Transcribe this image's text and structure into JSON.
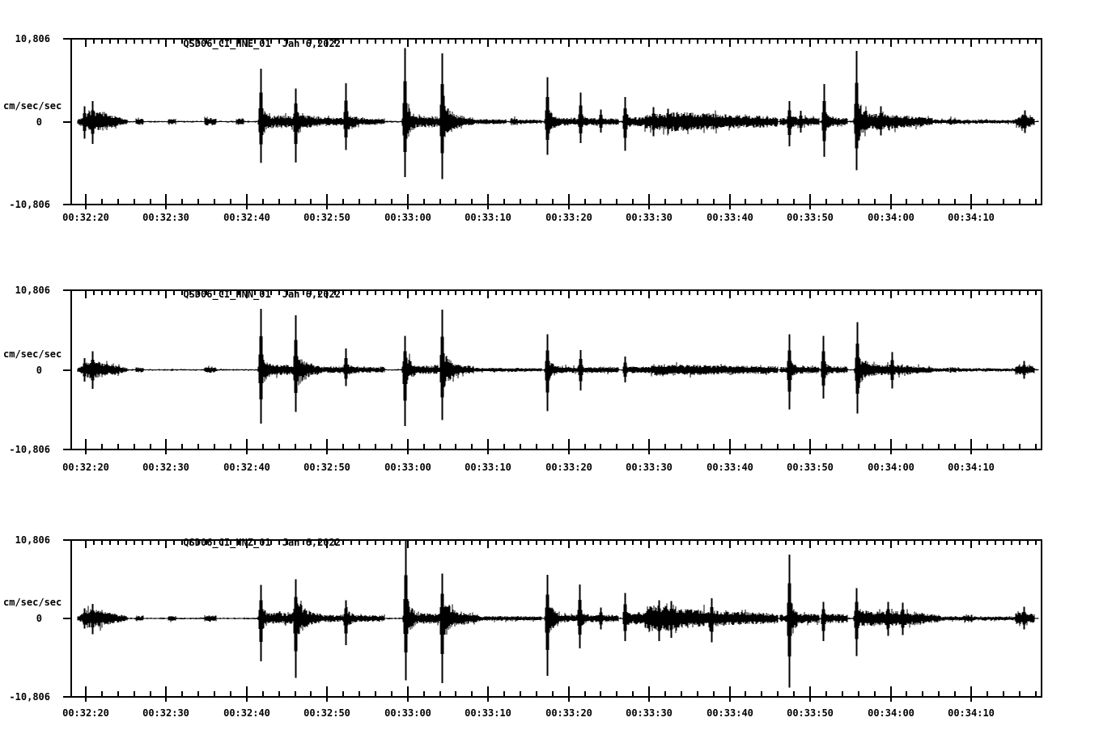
{
  "page": {
    "background": "#ffffff",
    "ink": "#000000"
  },
  "chart_data": [
    {
      "type": "line",
      "kind": "seismogram-waveform",
      "station_channel": "QSD06_CI_HNE_01",
      "date": "Jan 6,2022",
      "title": "QSD06_CI_HNE_01  Jan 6,2022",
      "ylabel": "cm/sec/sec",
      "yticks": [
        "10,806",
        "0",
        "-10,806"
      ],
      "ylim": [
        -10.806,
        10.806
      ],
      "xticks": [
        "00:32:20",
        "00:32:30",
        "00:32:40",
        "00:32:50",
        "00:33:00",
        "00:33:10",
        "00:33:20",
        "00:33:30",
        "00:33:40",
        "00:33:50",
        "00:34:00",
        "00:34:10"
      ],
      "x_tick_interval_seconds": 10,
      "series_notes": "spikes=[t_sec_from_left_edge, peak_up, peak_down, coda_sec]; noise=[t0, t1, amp_start, amp_end] envelope in cm/sec/sec",
      "seed": 101,
      "spikes": [
        [
          1.6,
          2.0,
          2.2,
          0.4
        ],
        [
          2.6,
          2.7,
          2.9,
          0.6
        ],
        [
          23.5,
          6.9,
          5.4,
          1.1
        ],
        [
          27.9,
          4.3,
          5.3,
          1.9
        ],
        [
          34.1,
          5.0,
          3.7,
          1.4
        ],
        [
          41.4,
          9.6,
          7.2,
          1.0
        ],
        [
          46.1,
          8.9,
          7.5,
          1.5
        ],
        [
          59.1,
          5.8,
          4.3,
          1.2
        ],
        [
          63.2,
          3.8,
          2.8,
          1.0
        ],
        [
          65.8,
          1.6,
          1.4,
          0.7
        ],
        [
          68.8,
          3.2,
          3.8,
          1.2
        ],
        [
          72.3,
          1.9,
          1.9,
          0.6
        ],
        [
          74.1,
          1.7,
          1.6,
          0.5
        ],
        [
          89.2,
          2.7,
          3.2,
          1.4
        ],
        [
          90.6,
          1.4,
          1.4,
          0.5
        ],
        [
          93.5,
          4.9,
          4.6,
          0.9
        ],
        [
          97.5,
          9.2,
          6.3,
          1.7
        ],
        [
          100.6,
          2.0,
          1.8,
          1.2
        ],
        [
          118.5,
          1.5,
          1.5,
          0.4
        ]
      ],
      "noise": [
        [
          0.8,
          2.2,
          0.3,
          1.5
        ],
        [
          2.2,
          4.5,
          1.5,
          1.2
        ],
        [
          4.5,
          7,
          1.0,
          0.3
        ],
        [
          8,
          9,
          0.45,
          0.45
        ],
        [
          12,
          13,
          0.4,
          0.4
        ],
        [
          16.5,
          18,
          0.5,
          0.5
        ],
        [
          20.5,
          21.5,
          0.5,
          0.5
        ],
        [
          24.2,
          27.6,
          0.85,
          0.8
        ],
        [
          28.3,
          31,
          1.0,
          0.6
        ],
        [
          31,
          35,
          0.55,
          0.5
        ],
        [
          35,
          39,
          0.5,
          0.4
        ],
        [
          41.8,
          45.8,
          0.8,
          0.7
        ],
        [
          46.5,
          50,
          0.95,
          0.55
        ],
        [
          50,
          54,
          0.35,
          0.3
        ],
        [
          54.5,
          55.5,
          0.5,
          0.5
        ],
        [
          55.5,
          58.5,
          0.3,
          0.25
        ],
        [
          59.5,
          63,
          0.6,
          0.5
        ],
        [
          63.5,
          68,
          0.5,
          0.45
        ],
        [
          69.2,
          71.2,
          0.6,
          0.6
        ],
        [
          71.2,
          75,
          0.9,
          1.3
        ],
        [
          75,
          79,
          1.3,
          1.1
        ],
        [
          79,
          83,
          1.1,
          0.9
        ],
        [
          83,
          87.8,
          0.9,
          0.7
        ],
        [
          88,
          89,
          0.5,
          0.5
        ],
        [
          89.5,
          93,
          0.7,
          0.55
        ],
        [
          94,
          96.5,
          0.6,
          0.5
        ],
        [
          98.5,
          103,
          1.1,
          0.9
        ],
        [
          103,
          107,
          0.9,
          0.5
        ],
        [
          107,
          109,
          0.3,
          0.3
        ],
        [
          109,
          110,
          0.45,
          0.45
        ],
        [
          110,
          112,
          0.3,
          0.25
        ],
        [
          112,
          117.3,
          0.25,
          0.25
        ],
        [
          117.3,
          118.3,
          0.5,
          1.1
        ],
        [
          118.3,
          119.7,
          1.1,
          0.5
        ]
      ]
    },
    {
      "type": "line",
      "kind": "seismogram-waveform",
      "station_channel": "QSD06_CI_HNN_01",
      "date": "Jan 6,2022",
      "title": "QSD06_CI_HNN_01  Jan 6,2022",
      "ylabel": "cm/sec/sec",
      "yticks": [
        "10,806",
        "0",
        "-10,806"
      ],
      "ylim": [
        -10.806,
        10.806
      ],
      "xticks": [
        "00:32:20",
        "00:32:30",
        "00:32:40",
        "00:32:50",
        "00:33:00",
        "00:33:10",
        "00:33:20",
        "00:33:30",
        "00:33:40",
        "00:33:50",
        "00:34:00",
        "00:34:10"
      ],
      "x_tick_interval_seconds": 10,
      "series_notes": "spikes=[t_sec_from_left_edge, peak_up, peak_down, coda_sec]; noise=[t0, t1, amp_start, amp_end] envelope in cm/sec/sec",
      "seed": 202,
      "spikes": [
        [
          1.6,
          1.6,
          1.6,
          0.4
        ],
        [
          2.6,
          2.5,
          2.6,
          0.5
        ],
        [
          23.5,
          8.3,
          7.3,
          1.1
        ],
        [
          27.9,
          7.4,
          5.7,
          1.7
        ],
        [
          34.1,
          2.9,
          2.2,
          1.7
        ],
        [
          41.4,
          4.6,
          7.6,
          1.1
        ],
        [
          46.1,
          8.2,
          6.8,
          1.5
        ],
        [
          59.1,
          4.8,
          5.6,
          1.0
        ],
        [
          63.2,
          2.7,
          2.8,
          0.9
        ],
        [
          68.8,
          1.8,
          1.7,
          1.0
        ],
        [
          89.2,
          4.8,
          5.4,
          0.9
        ],
        [
          93.4,
          4.6,
          3.9,
          0.8
        ],
        [
          97.6,
          6.5,
          5.9,
          1.7
        ],
        [
          102.0,
          2.4,
          2.5,
          1.2
        ],
        [
          118.4,
          1.2,
          1.2,
          0.4
        ]
      ],
      "noise": [
        [
          0.8,
          2.2,
          0.3,
          1.2
        ],
        [
          2.2,
          4.5,
          1.2,
          1.0
        ],
        [
          4.5,
          7,
          0.85,
          0.3
        ],
        [
          8,
          9,
          0.35,
          0.35
        ],
        [
          16.5,
          18,
          0.4,
          0.4
        ],
        [
          24.2,
          27.6,
          0.75,
          0.7
        ],
        [
          28.3,
          31,
          0.9,
          0.55
        ],
        [
          31,
          39,
          0.45,
          0.4
        ],
        [
          41.8,
          45.8,
          0.6,
          0.55
        ],
        [
          46.5,
          50,
          0.8,
          0.5
        ],
        [
          50,
          58.5,
          0.3,
          0.25
        ],
        [
          59.5,
          63,
          0.5,
          0.45
        ],
        [
          63.5,
          68,
          0.45,
          0.4
        ],
        [
          69,
          72,
          0.5,
          0.5
        ],
        [
          72,
          79,
          0.8,
          0.7
        ],
        [
          79,
          87.8,
          0.65,
          0.5
        ],
        [
          88,
          89,
          0.4,
          0.4
        ],
        [
          89.5,
          93,
          0.55,
          0.5
        ],
        [
          94,
          96.5,
          0.5,
          0.45
        ],
        [
          98.5,
          103,
          0.85,
          0.7
        ],
        [
          103,
          107,
          0.7,
          0.4
        ],
        [
          107,
          109,
          0.28,
          0.28
        ],
        [
          109.2,
          110,
          0.4,
          0.4
        ],
        [
          110,
          112,
          0.28,
          0.22
        ],
        [
          112,
          117.3,
          0.22,
          0.22
        ],
        [
          117.3,
          119.7,
          0.7,
          0.5
        ]
      ]
    },
    {
      "type": "line",
      "kind": "seismogram-waveform",
      "station_channel": "QSD06_CI_HNZ_01",
      "date": "Jan 6,2022",
      "title": "QSD06_CI_HNZ_01  Jan 6,2022",
      "ylabel": "cm/sec/sec",
      "yticks": [
        "10,806",
        "0",
        "-10,806"
      ],
      "ylim": [
        -10.806,
        10.806
      ],
      "xticks": [
        "00:32:20",
        "00:32:30",
        "00:32:40",
        "00:32:50",
        "00:33:00",
        "00:33:10",
        "00:33:20",
        "00:33:30",
        "00:33:40",
        "00:33:50",
        "00:34:00",
        "00:34:10"
      ],
      "x_tick_interval_seconds": 10,
      "series_notes": "spikes=[t_sec_from_left_edge, peak_up, peak_down, coda_sec]; noise=[t0, t1, amp_start, amp_end] envelope in cm/sec/sec",
      "seed": 303,
      "spikes": [
        [
          1.6,
          1.4,
          1.4,
          0.4
        ],
        [
          2.6,
          2.0,
          2.2,
          0.5
        ],
        [
          23.5,
          4.6,
          5.9,
          1.1
        ],
        [
          27.9,
          5.4,
          8.2,
          1.7
        ],
        [
          34.1,
          2.5,
          3.7,
          1.4
        ],
        [
          41.5,
          10.806,
          8.5,
          0.9
        ],
        [
          46.1,
          6.2,
          8.9,
          1.7
        ],
        [
          59.1,
          6.0,
          7.9,
          1.2
        ],
        [
          63.1,
          4.7,
          4.1,
          1.0
        ],
        [
          65.8,
          1.5,
          1.5,
          0.6
        ],
        [
          68.8,
          3.5,
          3.1,
          1.5
        ],
        [
          73.0,
          2.5,
          3.1,
          0.7
        ],
        [
          74.5,
          2.4,
          2.7,
          0.5
        ],
        [
          79.5,
          2.8,
          3.3,
          0.6
        ],
        [
          89.2,
          8.8,
          9.5,
          0.9
        ],
        [
          93.4,
          2.3,
          3.1,
          0.9
        ],
        [
          97.5,
          4.2,
          5.2,
          1.6
        ],
        [
          101.5,
          2.3,
          2.4,
          0.8
        ],
        [
          103.3,
          2.2,
          2.3,
          0.6
        ],
        [
          118.4,
          1.6,
          1.5,
          0.4
        ]
      ],
      "noise": [
        [
          0.8,
          2.2,
          0.3,
          1.3
        ],
        [
          2.2,
          4.5,
          1.3,
          1.1
        ],
        [
          4.5,
          7,
          0.9,
          0.3
        ],
        [
          8,
          9,
          0.4,
          0.4
        ],
        [
          12,
          13,
          0.35,
          0.35
        ],
        [
          16.5,
          18,
          0.45,
          0.45
        ],
        [
          24.2,
          27.6,
          0.8,
          0.75
        ],
        [
          28.3,
          31,
          1.1,
          0.7
        ],
        [
          31,
          39,
          0.5,
          0.45
        ],
        [
          41.8,
          45.8,
          0.8,
          0.7
        ],
        [
          46.5,
          50.5,
          1.1,
          0.7
        ],
        [
          50.5,
          58.5,
          0.35,
          0.3
        ],
        [
          59.5,
          63,
          0.6,
          0.5
        ],
        [
          63.5,
          68,
          0.55,
          0.5
        ],
        [
          69,
          71.5,
          0.7,
          1.0
        ],
        [
          71.5,
          75.5,
          1.9,
          1.7
        ],
        [
          75.5,
          80,
          1.4,
          1.2
        ],
        [
          80,
          87.8,
          1.1,
          0.7
        ],
        [
          88,
          89,
          0.5,
          0.5
        ],
        [
          89.5,
          93,
          0.7,
          0.6
        ],
        [
          94,
          96.5,
          0.7,
          0.6
        ],
        [
          98.5,
          104,
          1.1,
          1.0
        ],
        [
          104.5,
          105.5,
          1.0,
          1.0
        ],
        [
          104,
          108,
          0.9,
          0.5
        ],
        [
          108,
          111,
          0.3,
          0.3
        ],
        [
          111,
          112,
          0.5,
          0.5
        ],
        [
          112,
          117.3,
          0.28,
          0.28
        ],
        [
          117.3,
          119.7,
          1.0,
          0.6
        ]
      ]
    }
  ]
}
